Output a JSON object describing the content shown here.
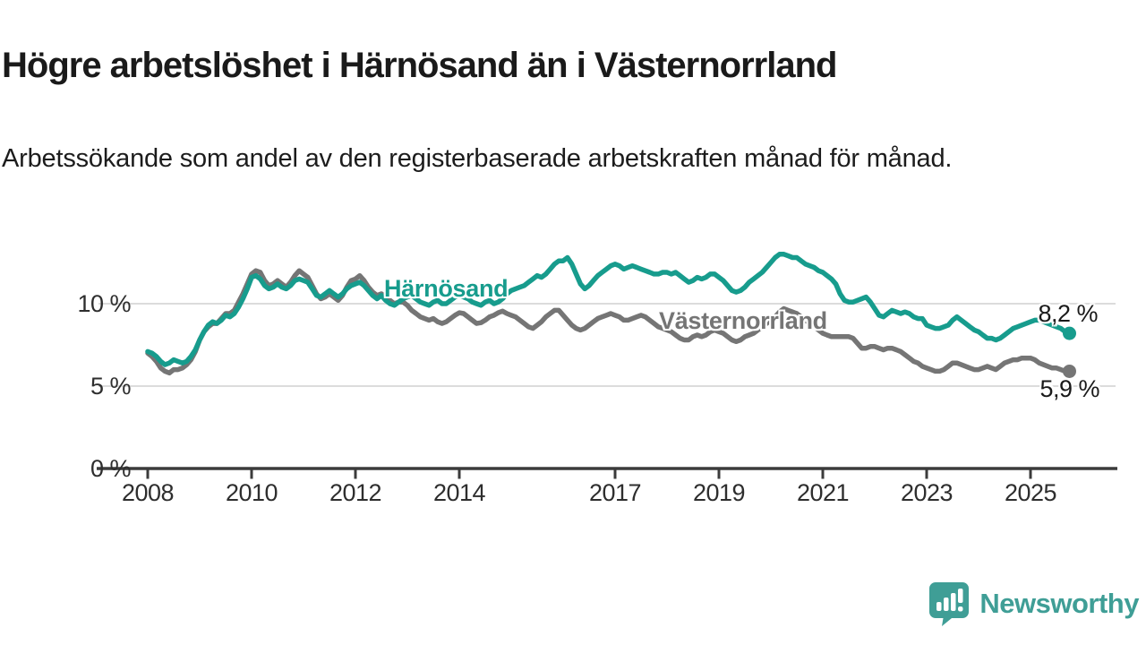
{
  "header": {
    "title": "Högre arbetslöshet i Härnösand än i Västernorrland",
    "subtitle": "Arbetssökande som andel av den registerbaserade arbetskraften månad för månad."
  },
  "chart_data": {
    "type": "line",
    "unit": "%",
    "x_start_year": 2008,
    "points_per_year": 12,
    "ylim": [
      0,
      13.5
    ],
    "grid_on": true,
    "gridlines": [
      5,
      10
    ],
    "grid_color": "#dcdcdc",
    "axis_color": "#3b3b3b",
    "x_ticks": [
      "2008",
      "2010",
      "2012",
      "2014",
      "2017",
      "2019",
      "2021",
      "2023",
      "2025"
    ],
    "y_ticks": [
      {
        "value": 0,
        "label": "0 %"
      },
      {
        "value": 5,
        "label": "5 %"
      },
      {
        "value": 10,
        "label": "10 %"
      }
    ],
    "series": [
      {
        "name": "Härnösand",
        "color": "#179c8d",
        "end_label": "8,2 %",
        "end_value": 8.2,
        "values": [
          7.1,
          7.0,
          6.8,
          6.5,
          6.3,
          6.4,
          6.6,
          6.5,
          6.4,
          6.5,
          6.8,
          7.2,
          7.8,
          8.3,
          8.7,
          8.9,
          8.8,
          9.0,
          9.3,
          9.2,
          9.4,
          9.8,
          10.3,
          10.9,
          11.6,
          11.7,
          11.5,
          11.1,
          10.9,
          11.0,
          11.2,
          11.0,
          10.9,
          11.1,
          11.4,
          11.5,
          11.4,
          11.3,
          10.9,
          10.5,
          10.4,
          10.6,
          10.8,
          10.6,
          10.4,
          10.6,
          10.9,
          11.1,
          11.2,
          11.3,
          11.1,
          10.8,
          10.5,
          10.3,
          10.5,
          10.2,
          10.0,
          9.9,
          10.1,
          10.3,
          10.4,
          10.5,
          10.3,
          10.1,
          10.0,
          9.9,
          10.1,
          10.2,
          10.0,
          10.0,
          10.2,
          10.4,
          10.5,
          10.4,
          10.3,
          10.1,
          10.0,
          9.9,
          10.1,
          10.2,
          10.0,
          10.1,
          10.3,
          10.6,
          10.8,
          10.9,
          11.0,
          11.1,
          11.3,
          11.5,
          11.7,
          11.6,
          11.8,
          12.1,
          12.4,
          12.6,
          12.6,
          12.8,
          12.4,
          11.8,
          11.2,
          10.9,
          11.1,
          11.4,
          11.7,
          11.9,
          12.1,
          12.3,
          12.4,
          12.3,
          12.1,
          12.2,
          12.3,
          12.2,
          12.1,
          12.0,
          11.9,
          11.8,
          11.8,
          11.9,
          11.9,
          11.8,
          11.9,
          11.7,
          11.5,
          11.3,
          11.4,
          11.6,
          11.5,
          11.6,
          11.8,
          11.8,
          11.6,
          11.4,
          11.1,
          10.8,
          10.7,
          10.8,
          11.0,
          11.3,
          11.5,
          11.7,
          11.9,
          12.2,
          12.5,
          12.8,
          13.0,
          13.0,
          12.9,
          12.8,
          12.8,
          12.6,
          12.4,
          12.3,
          12.2,
          12.0,
          11.9,
          11.7,
          11.5,
          11.2,
          10.6,
          10.2,
          10.1,
          10.1,
          10.2,
          10.3,
          10.4,
          10.1,
          9.7,
          9.3,
          9.2,
          9.4,
          9.6,
          9.5,
          9.4,
          9.5,
          9.4,
          9.2,
          9.1,
          9.1,
          8.7,
          8.6,
          8.5,
          8.5,
          8.6,
          8.7,
          9.0,
          9.2,
          9.0,
          8.8,
          8.6,
          8.4,
          8.3,
          8.1,
          7.9,
          7.9,
          7.8,
          7.9,
          8.1,
          8.3,
          8.5,
          8.6,
          8.7,
          8.8,
          8.9,
          9.0,
          9.0,
          8.9,
          8.8,
          8.7,
          8.6,
          8.5,
          8.3,
          8.2
        ]
      },
      {
        "name": "Västernorrland",
        "color": "#757575",
        "end_label": "5,9 %",
        "end_value": 5.9,
        "values": [
          7.0,
          6.8,
          6.5,
          6.1,
          5.9,
          5.8,
          6.0,
          6.0,
          6.1,
          6.3,
          6.6,
          7.1,
          7.8,
          8.3,
          8.6,
          8.8,
          8.8,
          9.1,
          9.4,
          9.4,
          9.6,
          10.1,
          10.6,
          11.2,
          11.8,
          12.0,
          11.9,
          11.4,
          11.1,
          11.2,
          11.4,
          11.2,
          11.0,
          11.3,
          11.7,
          12.0,
          11.8,
          11.6,
          11.1,
          10.6,
          10.3,
          10.4,
          10.6,
          10.4,
          10.2,
          10.5,
          11.0,
          11.4,
          11.5,
          11.7,
          11.4,
          11.0,
          10.7,
          10.5,
          10.6,
          10.4,
          10.2,
          10.0,
          10.1,
          10.1,
          9.9,
          9.6,
          9.4,
          9.2,
          9.1,
          9.0,
          9.1,
          8.9,
          8.8,
          8.9,
          9.1,
          9.3,
          9.45,
          9.4,
          9.2,
          9.0,
          8.8,
          8.85,
          9.0,
          9.2,
          9.3,
          9.45,
          9.55,
          9.4,
          9.3,
          9.2,
          9.0,
          8.8,
          8.6,
          8.5,
          8.7,
          8.9,
          9.2,
          9.4,
          9.6,
          9.6,
          9.3,
          9.0,
          8.7,
          8.5,
          8.4,
          8.5,
          8.7,
          8.9,
          9.1,
          9.2,
          9.3,
          9.4,
          9.3,
          9.2,
          9.0,
          9.0,
          9.1,
          9.2,
          9.3,
          9.2,
          9.0,
          8.8,
          8.6,
          8.5,
          8.4,
          8.3,
          8.1,
          7.9,
          7.8,
          7.8,
          8.0,
          8.1,
          8.0,
          8.1,
          8.3,
          8.4,
          8.3,
          8.2,
          8.0,
          7.8,
          7.7,
          7.8,
          8.0,
          8.1,
          8.2,
          8.4,
          8.6,
          8.8,
          9.0,
          9.2,
          9.5,
          9.7,
          9.6,
          9.5,
          9.4,
          9.2,
          9.0,
          8.8,
          8.6,
          8.4,
          8.2,
          8.1,
          8.0,
          8.0,
          8.0,
          8.0,
          8.0,
          7.9,
          7.6,
          7.3,
          7.3,
          7.4,
          7.4,
          7.3,
          7.2,
          7.3,
          7.3,
          7.2,
          7.1,
          6.9,
          6.7,
          6.5,
          6.4,
          6.2,
          6.1,
          6.0,
          5.9,
          5.9,
          6.0,
          6.2,
          6.4,
          6.4,
          6.3,
          6.2,
          6.1,
          6.0,
          6.0,
          6.1,
          6.2,
          6.1,
          6.0,
          6.2,
          6.4,
          6.5,
          6.6,
          6.6,
          6.7,
          6.7,
          6.7,
          6.6,
          6.4,
          6.3,
          6.2,
          6.1,
          6.1,
          6.0,
          5.9,
          5.9
        ]
      }
    ]
  },
  "branding": {
    "logo_text": "Newsworthy",
    "logo_color": "#3f9e96",
    "logo_icon": "bar-chart-speech-bubble-icon"
  }
}
